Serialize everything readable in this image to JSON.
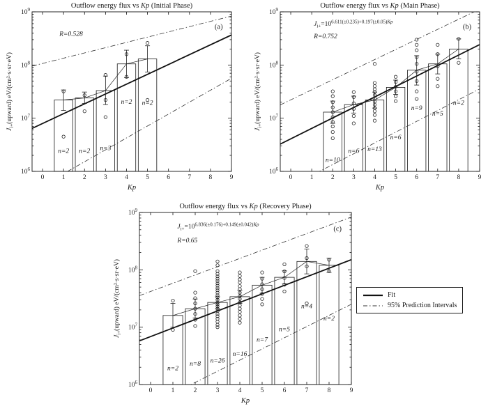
{
  "legend": {
    "fit_label": "Fit",
    "pi_label": "95% Prediction Intervals"
  },
  "axes": {
    "xlabel": "Kp",
    "ylabel_pre": "J",
    "ylabel_sub": "i+",
    "ylabel_post": "(upward) eV/(cm²·s·sr·eV)",
    "x_ticks": [
      0,
      1,
      2,
      3,
      4,
      5,
      6,
      7,
      8,
      9
    ],
    "y_tick_base": "10",
    "y_tick_exponents": [
      6,
      7,
      8,
      9
    ],
    "xlim": [
      -0.5,
      9
    ],
    "y_exp_range": [
      6,
      9
    ]
  },
  "chart_data": [
    {
      "id": "a",
      "type": "bar",
      "panel_label": "(a)",
      "title_pre": "Outflow energy flux vs ",
      "title_kp": "Kp",
      "title_post": " (Initial Phase)",
      "r_label": "R=0.528",
      "equation": null,
      "kp": [
        1,
        2,
        3,
        4,
        5
      ],
      "bar_values": [
        22000000.0,
        24000000.0,
        33000000.0,
        105000000.0,
        130000000.0
      ],
      "err_high": [
        34000000.0,
        31000000.0,
        62000000.0,
        190000000.0,
        230000000.0
      ],
      "err_low": [
        14000000.0,
        19000000.0,
        18000000.0,
        58000000.0,
        74000000.0
      ],
      "n_labels": [
        "n=2",
        "n=2",
        "n=3",
        "n=2",
        "n=2"
      ],
      "n_label_logy": [
        6.35,
        6.35,
        6.4,
        7.27,
        7.25
      ],
      "points": [
        [
          1,
          4500000.0
        ],
        [
          1,
          32000000.0
        ],
        [
          2,
          13500000.0
        ],
        [
          2,
          27000000.0
        ],
        [
          3,
          10500000.0
        ],
        [
          3,
          22000000.0
        ],
        [
          3,
          65000000.0
        ],
        [
          4,
          60000000.0
        ],
        [
          4,
          160000000.0
        ],
        [
          5,
          22000000.0
        ],
        [
          5,
          260000000.0
        ]
      ],
      "fit": {
        "slope": 0.185,
        "intercept": 6.9
      },
      "pi_upper": [
        [
          -0.5,
          7.98
        ],
        [
          9,
          8.92
        ]
      ],
      "pi_lower": [
        [
          -0.5,
          5.62
        ],
        [
          9,
          7.75
        ]
      ],
      "r_pos": [
        0.8,
        8.55
      ],
      "eq_pos": null,
      "panel_label_pos": [
        8.2,
        8.68
      ]
    },
    {
      "id": "b",
      "type": "bar",
      "panel_label": "(b)",
      "title_pre": "Outflow energy flux vs ",
      "title_kp": "Kp",
      "title_post": " (Main Phase)",
      "r_label": "R=0.752",
      "equation": {
        "pre": "J",
        "sub": "i+",
        "mid": "=10",
        "sup": "6.611(±0.235)+0.197(±0.05)",
        "sup_kp": "Kp"
      },
      "kp": [
        2,
        3,
        4,
        5,
        6,
        7,
        8
      ],
      "bar_values": [
        13000000.0,
        18000000.0,
        22000000.0,
        38000000.0,
        80000000.0,
        105000000.0,
        200000000.0
      ],
      "err_high": [
        21000000.0,
        26000000.0,
        31000000.0,
        52000000.0,
        150000000.0,
        160000000.0,
        310000000.0
      ],
      "err_low": [
        8000000.0,
        12500000.0,
        15500000.0,
        28000000.0,
        42000000.0,
        68000000.0,
        130000000.0
      ],
      "n_labels": [
        "n=10",
        "n=6",
        "n=13",
        "n=6",
        "n=9",
        "n=5",
        "n=2"
      ],
      "n_label_logy": [
        6.18,
        6.35,
        6.38,
        6.6,
        7.15,
        7.05,
        7.25
      ],
      "points": [
        [
          2,
          4200000.0
        ],
        [
          2,
          5500000.0
        ],
        [
          2,
          7000000.0
        ],
        [
          2,
          8500000.0
        ],
        [
          2,
          10500000.0
        ],
        [
          2,
          13000000.0
        ],
        [
          2,
          16000000.0
        ],
        [
          2,
          20000000.0
        ],
        [
          2,
          26000000.0
        ],
        [
          2,
          32000000.0
        ],
        [
          3,
          8000000.0
        ],
        [
          3,
          11000000.0
        ],
        [
          3,
          15000000.0
        ],
        [
          3,
          19000000.0
        ],
        [
          3,
          25000000.0
        ],
        [
          3,
          31000000.0
        ],
        [
          4,
          9000000.0
        ],
        [
          4,
          11500000.0
        ],
        [
          4,
          13500000.0
        ],
        [
          4,
          15500000.0
        ],
        [
          4,
          18000000.0
        ],
        [
          4,
          20500000.0
        ],
        [
          4,
          23500000.0
        ],
        [
          4,
          27000000.0
        ],
        [
          4,
          31000000.0
        ],
        [
          4,
          35000000.0
        ],
        [
          4,
          40000000.0
        ],
        [
          4,
          46000000.0
        ],
        [
          4,
          105000000.0
        ],
        [
          5,
          21000000.0
        ],
        [
          5,
          26000000.0
        ],
        [
          5,
          32000000.0
        ],
        [
          5,
          39000000.0
        ],
        [
          5,
          48000000.0
        ],
        [
          5,
          60000000.0
        ],
        [
          6,
          23000000.0
        ],
        [
          6,
          32000000.0
        ],
        [
          6,
          50000000.0
        ],
        [
          6,
          75000000.0
        ],
        [
          6,
          105000000.0
        ],
        [
          6,
          140000000.0
        ],
        [
          6,
          190000000.0
        ],
        [
          6,
          240000000.0
        ],
        [
          6,
          300000000.0
        ],
        [
          7,
          40000000.0
        ],
        [
          7,
          55000000.0
        ],
        [
          7,
          95000000.0
        ],
        [
          7,
          160000000.0
        ],
        [
          7,
          240000000.0
        ],
        [
          8,
          110000000.0
        ],
        [
          8,
          310000000.0
        ]
      ],
      "fit": {
        "slope": 0.197,
        "intercept": 6.611
      },
      "pi_upper": [
        [
          -0.5,
          7.25
        ],
        [
          9,
          9.05
        ]
      ],
      "pi_lower": [
        [
          -0.5,
          5.62
        ],
        [
          9,
          7.55
        ]
      ],
      "r_pos": [
        1.1,
        8.5
      ],
      "eq_pos": [
        1.1,
        8.74
      ],
      "panel_label_pos": [
        8.2,
        8.68
      ]
    },
    {
      "id": "c",
      "type": "bar",
      "panel_label": "(c)",
      "title_pre": "Outflow energy flux vs ",
      "title_kp": "Kp",
      "title_post": " (Recovery Phase)",
      "r_label": "R=0.65",
      "equation": {
        "pre": "J",
        "sub": "i+",
        "mid": "=10",
        "sup": "6.836(±0.176)+0.149(±0.042)",
        "sup_kp": "Kp"
      },
      "kp": [
        1,
        2,
        3,
        4,
        5,
        6,
        7,
        8
      ],
      "bar_values": [
        16000000.0,
        21000000.0,
        27000000.0,
        34000000.0,
        54000000.0,
        74000000.0,
        140000000.0,
        120000000.0
      ],
      "err_high": [
        26000000.0,
        31000000.0,
        34000000.0,
        44000000.0,
        74000000.0,
        96000000.0,
        230000000.0,
        160000000.0
      ],
      "err_low": [
        10000000.0,
        14500000.0,
        21000000.0,
        26000000.0,
        39000000.0,
        57000000.0,
        85000000.0,
        90000000.0
      ],
      "n_labels": [
        "n=2",
        "n=8",
        "n=26",
        "n=16",
        "n=7",
        "n=5",
        "n=4",
        "n=2"
      ],
      "n_label_logy": [
        6.25,
        6.33,
        6.38,
        6.5,
        6.75,
        6.93,
        7.33,
        7.12
      ],
      "points": [
        [
          1,
          9000000.0
        ],
        [
          1,
          29000000.0
        ],
        [
          2,
          10500000.0
        ],
        [
          2,
          13500000.0
        ],
        [
          2,
          17000000.0
        ],
        [
          2,
          21000000.0
        ],
        [
          2,
          26000000.0
        ],
        [
          2,
          32000000.0
        ],
        [
          2,
          40000000.0
        ],
        [
          2,
          95000000.0
        ],
        [
          3,
          10000000.0
        ],
        [
          3,
          11000000.0
        ],
        [
          3,
          12500000.0
        ],
        [
          3,
          14000000.0
        ],
        [
          3,
          15500000.0
        ],
        [
          3,
          17000000.0
        ],
        [
          3,
          19000000.0
        ],
        [
          3,
          21000000.0
        ],
        [
          3,
          23000000.0
        ],
        [
          3,
          25000000.0
        ],
        [
          3,
          27000000.0
        ],
        [
          3,
          30000000.0
        ],
        [
          3,
          33000000.0
        ],
        [
          3,
          36000000.0
        ],
        [
          3,
          40000000.0
        ],
        [
          3,
          44000000.0
        ],
        [
          3,
          48000000.0
        ],
        [
          3,
          53000000.0
        ],
        [
          3,
          58000000.0
        ],
        [
          3,
          64000000.0
        ],
        [
          3,
          70000000.0
        ],
        [
          3,
          77000000.0
        ],
        [
          3,
          85000000.0
        ],
        [
          3,
          95000000.0
        ],
        [
          3,
          120000000.0
        ],
        [
          3,
          140000000.0
        ],
        [
          4,
          12000000.0
        ],
        [
          4,
          14000000.0
        ],
        [
          4,
          16000000.0
        ],
        [
          4,
          18500000.0
        ],
        [
          4,
          21000000.0
        ],
        [
          4,
          24000000.0
        ],
        [
          4,
          27000000.0
        ],
        [
          4,
          31000000.0
        ],
        [
          4,
          35000000.0
        ],
        [
          4,
          40000000.0
        ],
        [
          4,
          46000000.0
        ],
        [
          4,
          52000000.0
        ],
        [
          4,
          60000000.0
        ],
        [
          4,
          68000000.0
        ],
        [
          4,
          78000000.0
        ],
        [
          4,
          90000000.0
        ],
        [
          5,
          25000000.0
        ],
        [
          5,
          31000000.0
        ],
        [
          5,
          38000000.0
        ],
        [
          5,
          46000000.0
        ],
        [
          5,
          56000000.0
        ],
        [
          5,
          70000000.0
        ],
        [
          5,
          90000000.0
        ],
        [
          6,
          42000000.0
        ],
        [
          6,
          55000000.0
        ],
        [
          6,
          72000000.0
        ],
        [
          6,
          94000000.0
        ],
        [
          6,
          125000000.0
        ],
        [
          7,
          26000000.0
        ],
        [
          7,
          115000000.0
        ],
        [
          7,
          160000000.0
        ],
        [
          7,
          260000000.0
        ],
        [
          8,
          95000000.0
        ],
        [
          8,
          150000000.0
        ]
      ],
      "fit": {
        "slope": 0.149,
        "intercept": 6.836
      },
      "pi_upper": [
        [
          -0.5,
          7.55
        ],
        [
          9,
          8.92
        ]
      ],
      "pi_lower": [
        [
          -0.5,
          5.55
        ],
        [
          9,
          7.4
        ]
      ],
      "r_pos": [
        1.2,
        8.48
      ],
      "eq_pos": [
        1.2,
        8.72
      ],
      "panel_label_pos": [
        8.2,
        8.68
      ]
    }
  ]
}
